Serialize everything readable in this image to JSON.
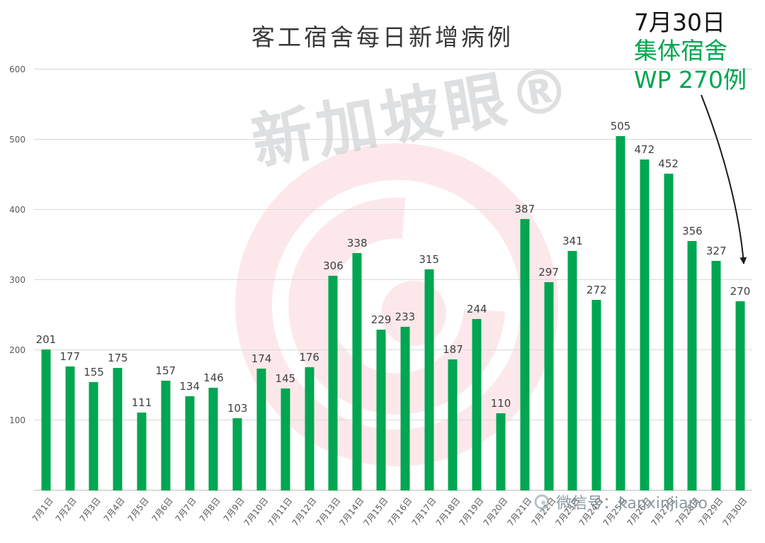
{
  "title": "客工宿舍每日新增病例",
  "annotation": {
    "line1": "7月30日",
    "line2": "集体宿舍",
    "line3": "WP 270例"
  },
  "watermark": {
    "center_text": "新加坡眼®",
    "footer_text": "微信号：kanxinjiapo"
  },
  "colors": {
    "bar": "#00a651",
    "accent_green": "#00a651",
    "watermark_pink": "#e94f63",
    "value_label": "#404040",
    "axis_label": "#595959"
  },
  "chart_data": {
    "type": "bar",
    "title": "客工宿舍每日新增病例",
    "categories": [
      "7月1日",
      "7月2日",
      "7月3日",
      "7月4日",
      "7月5日",
      "7月6日",
      "7月7日",
      "7月8日",
      "7月9日",
      "7月10日",
      "7月11日",
      "7月12日",
      "7月13日",
      "7月14日",
      "7月15日",
      "7月16日",
      "7月17日",
      "7月18日",
      "7月19日",
      "7月20日",
      "7月21日",
      "7月22日",
      "7月23日",
      "7月24日",
      "7月25日",
      "7月26日",
      "7月27日",
      "7月28日",
      "7月29日",
      "7月30日"
    ],
    "values": [
      201,
      177,
      155,
      175,
      111,
      157,
      134,
      146,
      103,
      174,
      145,
      176,
      306,
      338,
      229,
      233,
      315,
      187,
      244,
      110,
      387,
      297,
      341,
      272,
      505,
      472,
      452,
      356,
      327,
      270
    ],
    "xlabel": "",
    "ylabel": "",
    "ylim": [
      0,
      600
    ],
    "yticks": [
      100,
      200,
      300,
      400,
      500,
      600
    ],
    "grid": true,
    "legend": "none",
    "data_labels": true,
    "annotation_target": "7月30日"
  }
}
